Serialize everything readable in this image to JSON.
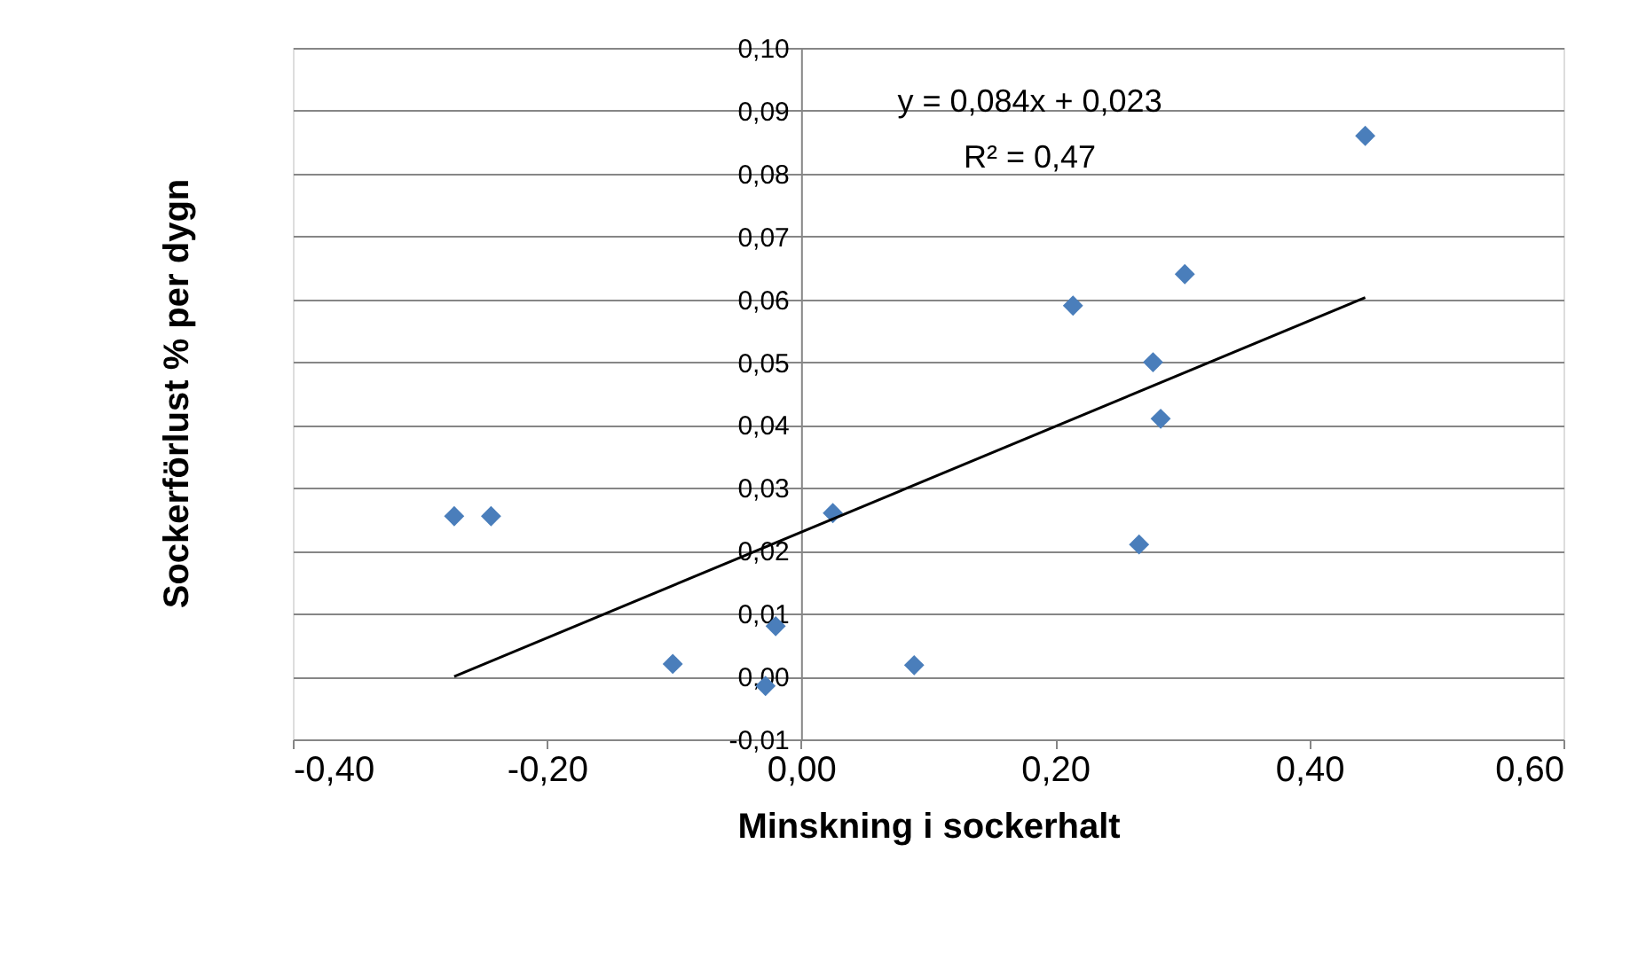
{
  "chart_data": {
    "type": "scatter",
    "xlabel": "Minskning i sockerhalt",
    "ylabel": "Sockerförlust % per dygn",
    "xlim": [
      -0.4,
      0.6
    ],
    "xticks": [
      {
        "value": -0.4,
        "label": "-0,40"
      },
      {
        "value": -0.2,
        "label": "-0,20"
      },
      {
        "value": 0.0,
        "label": "0,00"
      },
      {
        "value": 0.2,
        "label": "0,20"
      },
      {
        "value": 0.4,
        "label": "0,40"
      },
      {
        "value": 0.6,
        "label": "0,60"
      }
    ],
    "ylim": [
      -0.01,
      0.1
    ],
    "yticks": [
      {
        "value": -0.01,
        "label": "-0,01"
      },
      {
        "value": 0.0,
        "label": "0,00"
      },
      {
        "value": 0.01,
        "label": "0,01"
      },
      {
        "value": 0.02,
        "label": "0,02"
      },
      {
        "value": 0.03,
        "label": "0,03"
      },
      {
        "value": 0.04,
        "label": "0,04"
      },
      {
        "value": 0.05,
        "label": "0,05"
      },
      {
        "value": 0.06,
        "label": "0,06"
      },
      {
        "value": 0.07,
        "label": "0,07"
      },
      {
        "value": 0.08,
        "label": "0,08"
      },
      {
        "value": 0.09,
        "label": "0,09"
      },
      {
        "value": 0.1,
        "label": "0,10"
      }
    ],
    "grid": "y",
    "annotations": [
      "y = 0,084x + 0,023",
      "R² = 0,47"
    ],
    "series": [
      {
        "type": "scatter",
        "color": "#4a7ebb",
        "marker": "diamond",
        "x": [
          0.444,
          0.302,
          0.214,
          0.277,
          0.283,
          0.266,
          0.025,
          -0.273,
          -0.244,
          -0.02,
          -0.101,
          -0.028,
          0.089
        ],
        "values": [
          0.086,
          0.064,
          0.059,
          0.05,
          0.041,
          0.021,
          0.026,
          0.0255,
          0.0255,
          0.008,
          0.002,
          -0.0015,
          0.0018
        ]
      },
      {
        "type": "line",
        "color": "#000000",
        "line_style": "solid",
        "x": [
          -0.273,
          0.444
        ],
        "values": [
          0.0,
          0.0603
        ]
      }
    ]
  }
}
